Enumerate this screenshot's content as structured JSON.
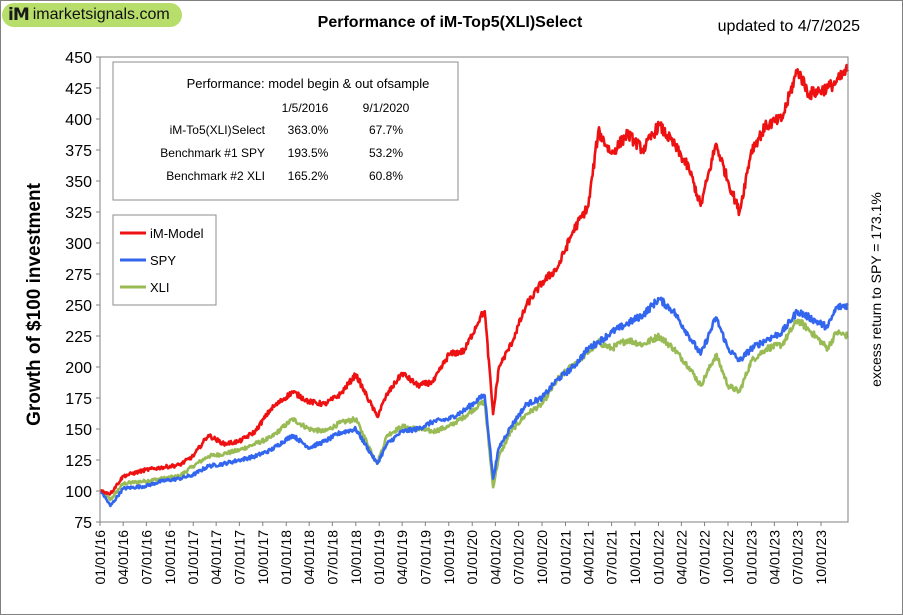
{
  "site": {
    "logo_mark": "iM",
    "logo_text": "imarketsignals.com"
  },
  "chart_data": {
    "type": "line",
    "title": "Performance  of iM-Top5(XLI)Select",
    "updated": "updated to  4/7/2025",
    "ylabel": "Growth of $100 investment",
    "right_label": "excess return to SPY = 173.1%",
    "ylim": [
      75,
      450
    ],
    "xlim": [
      "2016-01-01",
      "2024-01-15"
    ],
    "y_ticks": [
      "75",
      "100",
      "125",
      "150",
      "175",
      "200",
      "225",
      "250",
      "275",
      "300",
      "325",
      "350",
      "375",
      "400",
      "425",
      "450"
    ],
    "x_ticks": [
      "01/01/16",
      "04/01/16",
      "07/01/16",
      "10/01/16",
      "01/01/17",
      "04/01/17",
      "07/01/17",
      "10/01/17",
      "01/01/18",
      "04/01/18",
      "07/01/18",
      "10/01/18",
      "01/01/19",
      "04/01/19",
      "07/01/19",
      "10/01/19",
      "01/01/20",
      "04/01/20",
      "07/01/20",
      "10/01/20",
      "01/01/21",
      "04/01/21",
      "07/01/21",
      "10/01/21",
      "01/01/22",
      "04/01/22",
      "07/01/22",
      "10/01/22",
      "01/01/23",
      "04/01/23",
      "07/01/23",
      "10/01/23"
    ],
    "grid": false,
    "legend_position": "left",
    "series": [
      {
        "name": "iM-Model",
        "color": "#ee1111",
        "x": [
          "2016-01-05",
          "2016-02-11",
          "2016-04-01",
          "2016-06-27",
          "2016-09-01",
          "2016-11-08",
          "2016-12-31",
          "2017-03-01",
          "2017-05-01",
          "2017-07-01",
          "2017-09-01",
          "2017-11-01",
          "2018-01-26",
          "2018-04-01",
          "2018-06-01",
          "2018-08-01",
          "2018-10-01",
          "2018-12-24",
          "2019-02-01",
          "2019-04-01",
          "2019-06-01",
          "2019-08-01",
          "2019-10-01",
          "2019-12-01",
          "2020-02-01",
          "2020-02-19",
          "2020-03-23",
          "2020-04-15",
          "2020-06-01",
          "2020-08-01",
          "2020-10-01",
          "2020-12-01",
          "2021-02-01",
          "2021-04-01",
          "2021-05-10",
          "2021-07-01",
          "2021-09-01",
          "2021-11-01",
          "2022-01-03",
          "2022-03-01",
          "2022-05-01",
          "2022-06-16",
          "2022-08-15",
          "2022-10-01",
          "2022-11-15",
          "2023-01-01",
          "2023-03-01",
          "2023-05-01",
          "2023-07-01",
          "2023-08-15",
          "2023-10-27",
          "2023-12-01",
          "2024-01-15"
        ],
        "y": [
          100,
          98,
          112,
          117,
          119,
          121,
          128,
          145,
          138,
          140,
          148,
          166,
          180,
          172,
          170,
          178,
          194,
          160,
          178,
          195,
          185,
          188,
          210,
          213,
          240,
          245,
          162,
          200,
          218,
          250,
          268,
          280,
          310,
          330,
          390,
          372,
          388,
          375,
          395,
          380,
          360,
          330,
          380,
          350,
          325,
          375,
          395,
          400,
          440,
          420,
          425,
          430,
          440
        ]
      },
      {
        "name": "SPY",
        "color": "#3366ee",
        "x": [
          "2016-01-05",
          "2016-02-11",
          "2016-04-01",
          "2016-06-27",
          "2016-09-01",
          "2016-11-08",
          "2016-12-31",
          "2017-03-01",
          "2017-05-01",
          "2017-07-01",
          "2017-09-01",
          "2017-11-01",
          "2018-01-26",
          "2018-04-01",
          "2018-06-01",
          "2018-08-01",
          "2018-10-01",
          "2018-12-24",
          "2019-02-01",
          "2019-04-01",
          "2019-06-01",
          "2019-08-01",
          "2019-10-01",
          "2019-12-01",
          "2020-02-01",
          "2020-02-19",
          "2020-03-23",
          "2020-04-15",
          "2020-06-01",
          "2020-08-01",
          "2020-10-01",
          "2020-12-01",
          "2021-02-01",
          "2021-04-01",
          "2021-05-10",
          "2021-07-01",
          "2021-09-01",
          "2021-11-01",
          "2022-01-03",
          "2022-03-01",
          "2022-05-01",
          "2022-06-16",
          "2022-08-15",
          "2022-10-01",
          "2022-11-15",
          "2023-01-01",
          "2023-03-01",
          "2023-05-01",
          "2023-07-01",
          "2023-08-15",
          "2023-10-27",
          "2023-12-01",
          "2024-01-15"
        ],
        "y": [
          100,
          88,
          102,
          104,
          108,
          110,
          113,
          120,
          122,
          125,
          128,
          133,
          145,
          135,
          140,
          147,
          150,
          122,
          138,
          148,
          150,
          156,
          158,
          165,
          175,
          177,
          110,
          135,
          152,
          170,
          175,
          190,
          200,
          215,
          220,
          228,
          235,
          242,
          255,
          245,
          225,
          210,
          240,
          215,
          205,
          215,
          222,
          228,
          245,
          240,
          232,
          248,
          250
        ]
      },
      {
        "name": "XLI",
        "color": "#99bb55",
        "x": [
          "2016-01-05",
          "2016-02-11",
          "2016-04-01",
          "2016-06-27",
          "2016-09-01",
          "2016-11-08",
          "2016-12-31",
          "2017-03-01",
          "2017-05-01",
          "2017-07-01",
          "2017-09-01",
          "2017-11-01",
          "2018-01-26",
          "2018-04-01",
          "2018-06-01",
          "2018-08-01",
          "2018-10-01",
          "2018-12-24",
          "2019-02-01",
          "2019-04-01",
          "2019-06-01",
          "2019-08-01",
          "2019-10-01",
          "2019-12-01",
          "2020-02-01",
          "2020-02-19",
          "2020-03-23",
          "2020-04-15",
          "2020-06-01",
          "2020-08-01",
          "2020-10-01",
          "2020-12-01",
          "2021-02-01",
          "2021-04-01",
          "2021-05-10",
          "2021-07-01",
          "2021-09-01",
          "2021-11-01",
          "2022-01-03",
          "2022-03-01",
          "2022-05-01",
          "2022-06-16",
          "2022-08-15",
          "2022-10-01",
          "2022-11-15",
          "2023-01-01",
          "2023-03-01",
          "2023-05-01",
          "2023-07-01",
          "2023-08-15",
          "2023-10-27",
          "2023-12-01",
          "2024-01-15"
        ],
        "y": [
          100,
          93,
          106,
          108,
          110,
          112,
          120,
          128,
          130,
          133,
          138,
          143,
          158,
          150,
          148,
          155,
          158,
          122,
          145,
          152,
          150,
          148,
          152,
          160,
          170,
          172,
          103,
          128,
          148,
          162,
          170,
          190,
          202,
          212,
          220,
          215,
          222,
          218,
          225,
          215,
          200,
          185,
          210,
          185,
          180,
          205,
          215,
          218,
          238,
          230,
          215,
          228,
          225
        ]
      }
    ],
    "performance_table": {
      "header": "Performance:  model begin  &  out ofsample",
      "col1": "1/5/2016",
      "col2": "9/1/2020",
      "rows": [
        {
          "label": "iM-To5(XLI)Select",
          "v1": "363.0%",
          "v2": "67.7%"
        },
        {
          "label": "Benchmark #1 SPY",
          "v1": "193.5%",
          "v2": "53.2%"
        },
        {
          "label": "Benchmark #2 XLI",
          "v1": "165.2%",
          "v2": "60.8%"
        }
      ]
    }
  }
}
